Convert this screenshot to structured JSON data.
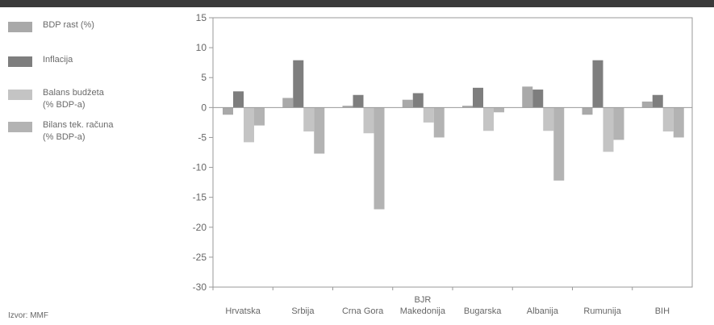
{
  "legend": {
    "items": [
      {
        "label": "BDP rast (%)",
        "color": "#a9a9a9"
      },
      {
        "label": "Inflacija",
        "color": "#7e7e7e"
      },
      {
        "label": "Balans budžeta\n(% BDP-a)",
        "color": "#c4c4c4"
      },
      {
        "label": "Bilans tek. računa\n(% BDP-a)",
        "color": "#b3b3b3"
      }
    ]
  },
  "source": "Izvor: MMF",
  "chart_data": {
    "type": "bar",
    "categories": [
      "Hrvatska",
      "Srbija",
      "Crna Gora",
      "BJR\nMakedonija",
      "Bugarska",
      "Albanija",
      "Rumunija",
      "BIH"
    ],
    "series": [
      {
        "name": "BDP rast (%)",
        "values": [
          -1.2,
          1.6,
          0.3,
          1.3,
          0.3,
          3.5,
          -1.2,
          1.0
        ],
        "color": "#a9a9a9"
      },
      {
        "name": "Inflacija",
        "values": [
          2.7,
          7.9,
          2.1,
          2.4,
          3.3,
          3.0,
          7.9,
          2.1
        ],
        "color": "#7e7e7e"
      },
      {
        "name": "Balans budžeta (% BDP-a)",
        "values": [
          -5.8,
          -4.0,
          -4.3,
          -2.5,
          -3.9,
          -3.9,
          -7.4,
          -4.0
        ],
        "color": "#c4c4c4"
      },
      {
        "name": "Bilans tek. računa (% BDP-a)",
        "values": [
          -3.0,
          -7.7,
          -17.0,
          -5.0,
          -0.8,
          -12.2,
          -5.4,
          -5.0
        ],
        "color": "#b3b3b3"
      }
    ],
    "ylim": [
      -30,
      15
    ],
    "yticks": [
      15,
      10,
      5,
      0,
      -5,
      -10,
      -15,
      -20,
      -25,
      -30
    ],
    "legend_position": "left",
    "grid": false
  }
}
